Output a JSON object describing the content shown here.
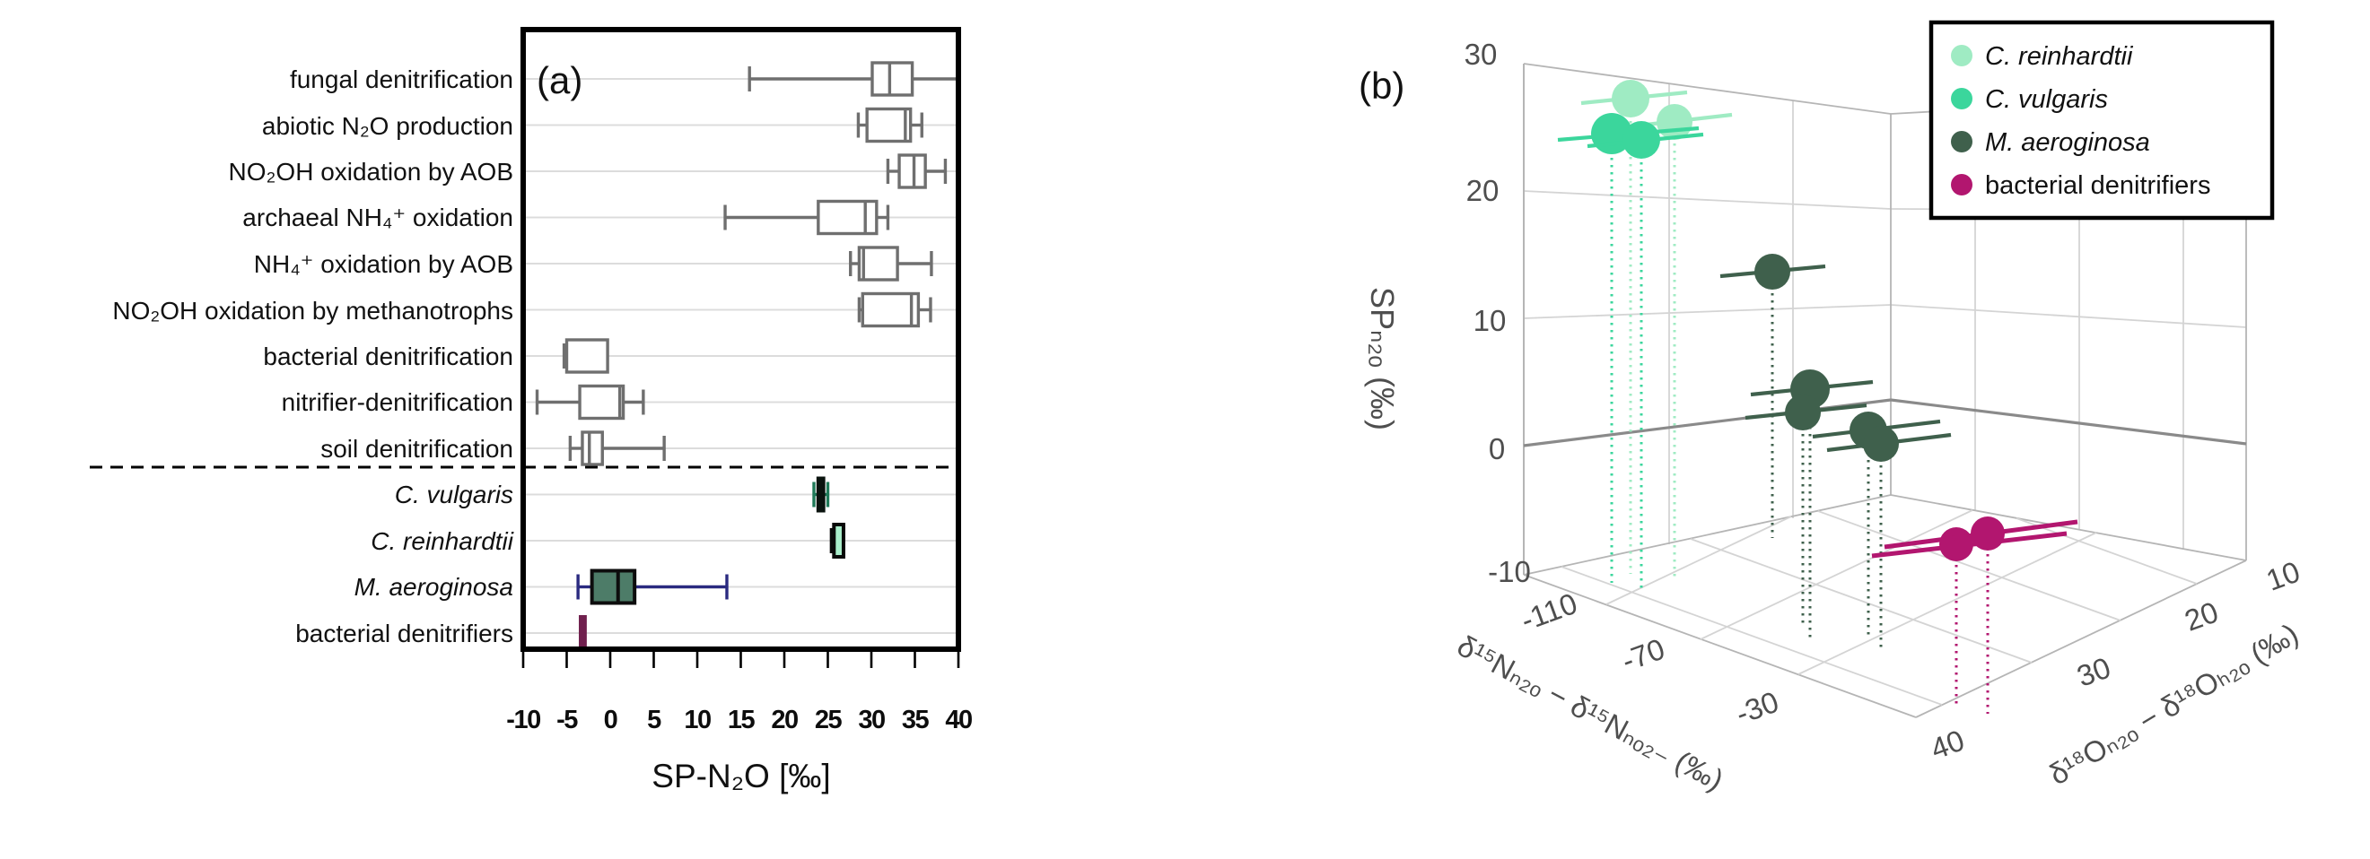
{
  "panel_a": {
    "label": "(a)",
    "xlabel": "SP-N₂O [‰]",
    "x_ticks": [
      "-10",
      "-5",
      "0",
      "5",
      "10",
      "15",
      "20",
      "25",
      "30",
      "35",
      "40"
    ]
  },
  "panel_b": {
    "label": "(b)",
    "zlabel": "SPₙ₂ₒ (‰)",
    "z_ticks": [
      "30",
      "20",
      "10",
      "0",
      "-10"
    ],
    "x_axis": {
      "label": "δ¹⁵Nₙ₂ₒ − δ¹⁵Nₙₒ₂₋ (‰)",
      "ticks": [
        "-110",
        "-70",
        "-30"
      ]
    },
    "y_axis": {
      "label": "δ¹⁸Oₙ₂ₒ − δ¹⁸Oₕ₂ₒ (‰)",
      "ticks": [
        "10",
        "20",
        "30",
        "40"
      ]
    },
    "legend": {
      "items": [
        {
          "label": "C. reinhardtii",
          "color": "#9febc3",
          "italic": true
        },
        {
          "label": "C. vulgaris",
          "color": "#3bd69c",
          "italic": true
        },
        {
          "label": "M. aeroginosa",
          "color": "#3f604c",
          "italic": true
        },
        {
          "label": "bacterial denitrifiers",
          "color": "#b2166f",
          "italic": false
        }
      ]
    }
  },
  "chart_data": [
    {
      "type": "boxplot",
      "orientation": "horizontal",
      "xlabel": "SP-N₂O [‰]",
      "xlim": [
        -10,
        40
      ],
      "x_tick_values": [
        -10,
        -5,
        0,
        5,
        10,
        15,
        20,
        25,
        30,
        35,
        40
      ],
      "grid": "horizontal-category-lines",
      "separator_dashed_after_category": "soil denitrification",
      "categories": [
        "fungal denitrification",
        "abiotic N₂O production",
        "NO₂OH oxidation by AOB",
        "archaeal NH₄⁺ oxidation",
        "NH₄⁺ oxidation by AOB",
        "NO₂OH oxidation by methanotrophs",
        "bacterial denitrification",
        "nitrifier-denitrification",
        "soil denitrification",
        "C. vulgaris",
        "C. reinhardtii",
        "M. aeroginosa",
        "bacterial denitrifiers"
      ],
      "values": [
        {
          "category": "fungal denitrification",
          "low": 16.0,
          "q1": 30.1,
          "median": 32.1,
          "q3": 34.7,
          "high": 39.9,
          "right_cap": false
        },
        {
          "category": "abiotic N₂O production",
          "low": 28.5,
          "q1": 29.5,
          "median": 33.9,
          "q3": 34.5,
          "high": 35.8
        },
        {
          "category": "NO₂OH oxidation by AOB",
          "low": 31.9,
          "q1": 33.2,
          "median": 34.9,
          "q3": 36.2,
          "high": 38.5
        },
        {
          "category": "archaeal NH₄⁺ oxidation",
          "low": 13.2,
          "q1": 23.9,
          "median": 29.3,
          "q3": 30.6,
          "high": 31.9
        },
        {
          "category": "NH₄⁺ oxidation by AOB",
          "low": 27.6,
          "q1": 28.6,
          "median": 29.1,
          "q3": 33.0,
          "high": 36.9
        },
        {
          "category": "NO₂OH oxidation by methanotrophs",
          "low": 28.6,
          "q1": 29.0,
          "median": 34.6,
          "q3": 35.4,
          "high": 36.8
        },
        {
          "category": "bacterial denitrification",
          "low": -5.3,
          "q1": -5.0,
          "median": -5.0,
          "q3": -0.3,
          "high": -0.3
        },
        {
          "category": "nitrifier-denitrification",
          "low": -8.4,
          "q1": -3.5,
          "median": 1.1,
          "q3": 1.5,
          "high": 3.8
        },
        {
          "category": "soil denitrification",
          "low": -4.6,
          "q1": -3.2,
          "median": -2.4,
          "q3": -0.9,
          "high": 6.2
        },
        {
          "category": "C. vulgaris",
          "low": 23.4,
          "q1": 23.9,
          "median": 24.2,
          "q3": 24.5,
          "high": 25.0,
          "fill": "#2fae7f",
          "edge": "#0a130e",
          "whisker_color": "#1f7a58"
        },
        {
          "category": "C. reinhardtii",
          "low": 25.4,
          "q1": 25.7,
          "median": 26.8,
          "q3": 26.8,
          "high": 26.8,
          "fill": "#aaeecb",
          "edge": "#0a0a0a",
          "whisker_color": "#0a0a0a"
        },
        {
          "category": "M. aeroginosa",
          "low": -3.7,
          "q1": -2.1,
          "median": 0.9,
          "q3": 2.8,
          "high": 13.4,
          "fill": "#4d7c68",
          "edge": "#0d0d0d",
          "whisker_color": "#2a2a80"
        },
        {
          "category": "bacterial denitrifiers",
          "low": -3.4,
          "q1": -3.4,
          "median": -3.15,
          "q3": -2.9,
          "high": -2.9,
          "fill": "#2a1f3a",
          "edge": "#70204e"
        }
      ]
    },
    {
      "type": "scatter",
      "subtype": "scatter3d",
      "xlabel": "δ¹⁵Nₙ₂ₒ − δ¹⁵Nₙₒ₂₋ (‰)",
      "ylabel": "δ¹⁸Oₙ₂ₒ − δ¹⁸Oₕ₂ₒ (‰)",
      "zlabel": "SPₙ₂ₒ (‰)",
      "x_ticks": [
        -110,
        -70,
        -30
      ],
      "y_ticks": [
        10,
        20,
        30,
        40
      ],
      "z_ticks": [
        30,
        20,
        10,
        0,
        -10
      ],
      "zlim": [
        -10,
        30
      ],
      "legend_position": "upper right",
      "markers": "spheres with horizontal error bars and dashed vertical stems to floor",
      "series": [
        {
          "name": "C. reinhardtii",
          "color": "#9febc3",
          "points": [
            {
              "x": -100,
              "y": 13,
              "sp": 26.5
            },
            {
              "x": -97,
              "y": 14,
              "sp": 26.0
            }
          ]
        },
        {
          "name": "C. vulgaris",
          "color": "#3bd69c",
          "points": [
            {
              "x": -104,
              "y": 12,
              "sp": 24.5
            },
            {
              "x": -101,
              "y": 13,
              "sp": 24.0
            }
          ]
        },
        {
          "name": "M. aeroginosa",
          "color": "#3f604c",
          "points": [
            {
              "x": -60,
              "y": 17,
              "sp": 14.0
            },
            {
              "x": -57,
              "y": 20,
              "sp": 5.0
            },
            {
              "x": -58,
              "y": 21,
              "sp": 3.5
            },
            {
              "x": -50,
              "y": 23,
              "sp": 2.0
            },
            {
              "x": -49,
              "y": 24,
              "sp": 1.0
            }
          ]
        },
        {
          "name": "bacterial denitrifiers",
          "color": "#b2166f",
          "points": [
            {
              "x": -27,
              "y": 26,
              "sp": -3.0
            },
            {
              "x": -24,
              "y": 25,
              "sp": -3.5
            }
          ]
        }
      ]
    }
  ]
}
